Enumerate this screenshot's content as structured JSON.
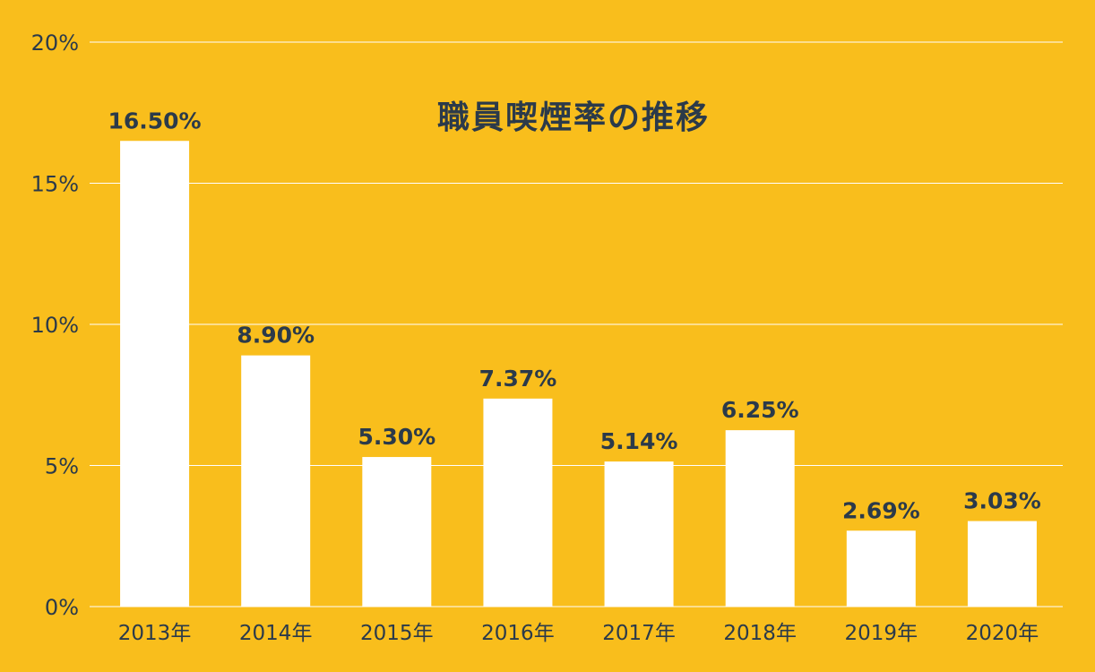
{
  "chart_data": {
    "type": "bar",
    "title": "職員喫煙率の推移",
    "categories": [
      "2013年",
      "2014年",
      "2015年",
      "2016年",
      "2017年",
      "2018年",
      "2019年",
      "2020年"
    ],
    "values": [
      16.5,
      8.9,
      5.3,
      7.37,
      5.14,
      6.25,
      2.69,
      3.03
    ],
    "data_labels": [
      "16.50%",
      "8.90%",
      "5.30%",
      "7.37%",
      "5.14%",
      "6.25%",
      "2.69%",
      "3.03%"
    ],
    "yticks": [
      0,
      5,
      10,
      15,
      20
    ],
    "ytick_labels": [
      "0%",
      "5%",
      "10%",
      "15%",
      "20%"
    ],
    "ylim": [
      0,
      20
    ],
    "grid": true,
    "colors": {
      "background": "#F9BE1C",
      "bar": "#FFFFFF",
      "text": "#2B3A4A",
      "grid": "#FFFFFF"
    }
  }
}
